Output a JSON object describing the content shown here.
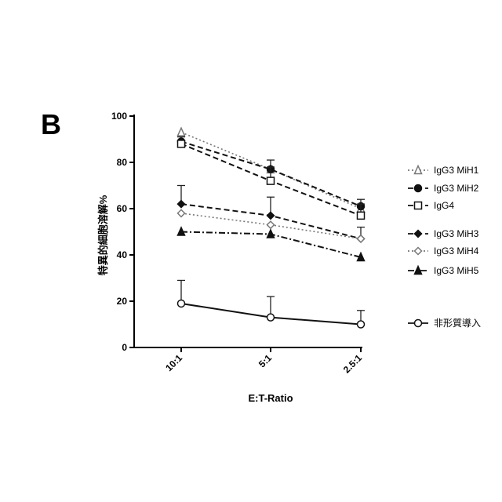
{
  "panel_label": "B",
  "chart_data": {
    "type": "line",
    "categories": [
      "10:1",
      "5:1",
      "2.5:1"
    ],
    "xlabel": "E:T-Ratio",
    "ylabel": "特異的細胞溶解%",
    "ylim": [
      0,
      100
    ],
    "yticks": [
      0,
      20,
      40,
      60,
      80,
      100
    ],
    "grid": false,
    "legend_position": "right",
    "series": [
      {
        "name": "IgG3 MiH1",
        "values": [
          93,
          77,
          60
        ],
        "errors": [
          0,
          0,
          0
        ],
        "marker": "triangle-open",
        "dash": "dotted",
        "color": "#777777"
      },
      {
        "name": "IgG3 MiH2",
        "values": [
          89,
          77,
          61
        ],
        "errors": [
          2,
          4,
          3
        ],
        "marker": "circle-filled",
        "dash": "dashed",
        "color": "#111111"
      },
      {
        "name": "IgG4",
        "values": [
          88,
          72,
          57
        ],
        "errors": [
          1,
          6,
          5
        ],
        "marker": "square-open",
        "dash": "dashed",
        "color": "#111111"
      },
      {
        "name": "IgG3 MiH3",
        "values": [
          62,
          57,
          47
        ],
        "errors": [
          8,
          8,
          5
        ],
        "marker": "diamond-filled",
        "dash": "dashed",
        "color": "#111111"
      },
      {
        "name": "IgG3 MiH4",
        "values": [
          58,
          53,
          47
        ],
        "errors": [
          0,
          0,
          0
        ],
        "marker": "diamond-open",
        "dash": "dotted",
        "color": "#777777"
      },
      {
        "name": "IgG3 MiH5",
        "values": [
          50,
          49,
          39
        ],
        "errors": [
          0,
          0,
          0
        ],
        "marker": "triangle-filled",
        "dash": "dashdot",
        "color": "#111111"
      },
      {
        "name": "非形質導入",
        "values": [
          19,
          13,
          10
        ],
        "errors": [
          10,
          9,
          6
        ],
        "marker": "circle-open",
        "dash": "solid",
        "color": "#111111"
      }
    ]
  }
}
